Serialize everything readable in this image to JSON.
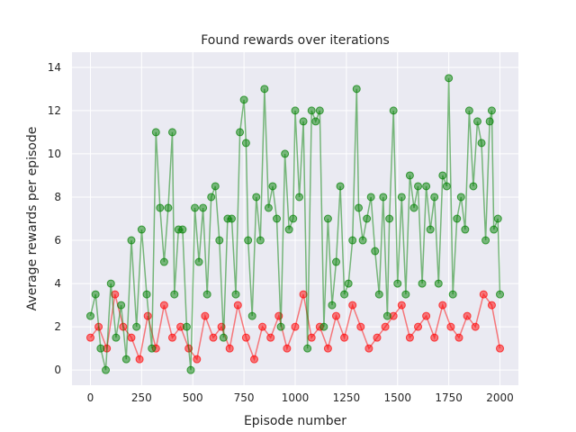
{
  "chart_data": {
    "type": "scatter",
    "title": "Found rewards over iterations",
    "xlabel": "Episode number",
    "ylabel": "Average rewards per episode",
    "xlim": [
      -90,
      2090
    ],
    "ylim": [
      -0.7,
      14.7
    ],
    "xticks": [
      0,
      250,
      500,
      750,
      1000,
      1250,
      1500,
      1750,
      2000
    ],
    "yticks": [
      0,
      2,
      4,
      6,
      8,
      10,
      12,
      14
    ],
    "grid": true,
    "legend": "none",
    "colors": {
      "background": "#eaeaf2",
      "red_series": "#ff0000",
      "green_series": "#008000"
    },
    "series": [
      {
        "color": "#ff0000",
        "x": [
          0,
          40,
          80,
          120,
          160,
          200,
          240,
          280,
          320,
          360,
          400,
          440,
          480,
          520,
          560,
          600,
          640,
          680,
          720,
          760,
          800,
          840,
          880,
          920,
          960,
          1000,
          1040,
          1080,
          1120,
          1160,
          1200,
          1240,
          1280,
          1320,
          1360,
          1400,
          1440,
          1480,
          1520,
          1560,
          1600,
          1640,
          1680,
          1720,
          1760,
          1800,
          1840,
          1880,
          1920,
          1960,
          2000
        ],
        "values": [
          1.5,
          2.0,
          1.0,
          3.5,
          2.0,
          1.5,
          0.5,
          2.5,
          1.0,
          3.0,
          1.5,
          2.0,
          1.0,
          0.5,
          2.5,
          1.5,
          2.0,
          1.0,
          3.0,
          1.5,
          0.5,
          2.0,
          1.5,
          2.5,
          1.0,
          2.0,
          3.5,
          1.5,
          2.0,
          1.0,
          2.5,
          1.5,
          3.0,
          2.0,
          1.0,
          1.5,
          2.0,
          2.5,
          3.0,
          1.5,
          2.0,
          2.5,
          1.5,
          3.0,
          2.0,
          1.5,
          2.5,
          2.0,
          3.5,
          3.0,
          1.0
        ]
      },
      {
        "color": "#008000",
        "x": [
          0,
          25,
          50,
          75,
          100,
          125,
          150,
          175,
          200,
          225,
          250,
          275,
          300,
          320,
          340,
          360,
          380,
          400,
          410,
          430,
          450,
          470,
          490,
          510,
          530,
          550,
          570,
          590,
          610,
          630,
          650,
          670,
          690,
          710,
          730,
          750,
          760,
          770,
          790,
          810,
          830,
          850,
          870,
          890,
          910,
          930,
          950,
          970,
          990,
          1000,
          1020,
          1040,
          1060,
          1080,
          1100,
          1120,
          1140,
          1160,
          1180,
          1200,
          1220,
          1240,
          1260,
          1280,
          1300,
          1310,
          1330,
          1350,
          1370,
          1390,
          1410,
          1430,
          1450,
          1460,
          1480,
          1500,
          1520,
          1540,
          1560,
          1580,
          1600,
          1620,
          1640,
          1660,
          1680,
          1700,
          1720,
          1740,
          1750,
          1770,
          1790,
          1810,
          1830,
          1850,
          1870,
          1890,
          1910,
          1930,
          1950,
          1960,
          1970,
          1990,
          2000
        ],
        "values": [
          2.5,
          3.5,
          1.0,
          0.0,
          4.0,
          1.5,
          3.0,
          0.5,
          6.0,
          2.0,
          6.5,
          3.5,
          1.0,
          11.0,
          7.5,
          5.0,
          7.5,
          11.0,
          3.5,
          6.5,
          6.5,
          2.0,
          0.0,
          7.5,
          5.0,
          7.5,
          3.5,
          8.0,
          8.5,
          6.0,
          1.5,
          7.0,
          7.0,
          3.5,
          11.0,
          12.5,
          10.5,
          6.0,
          2.5,
          8.0,
          6.0,
          13.0,
          7.5,
          8.5,
          7.0,
          2.0,
          10.0,
          6.5,
          7.0,
          12.0,
          8.0,
          11.5,
          1.0,
          12.0,
          11.5,
          12.0,
          2.0,
          7.0,
          3.0,
          5.0,
          8.5,
          3.5,
          4.0,
          6.0,
          13.0,
          7.5,
          6.0,
          7.0,
          8.0,
          5.5,
          3.5,
          8.0,
          2.5,
          7.0,
          12.0,
          4.0,
          8.0,
          3.5,
          9.0,
          7.5,
          8.5,
          4.0,
          8.5,
          6.5,
          8.0,
          4.0,
          9.0,
          8.5,
          13.5,
          3.5,
          7.0,
          8.0,
          6.5,
          12.0,
          8.5,
          11.5,
          10.5,
          6.0,
          11.5,
          12.0,
          6.5,
          7.0,
          3.5
        ]
      }
    ]
  }
}
